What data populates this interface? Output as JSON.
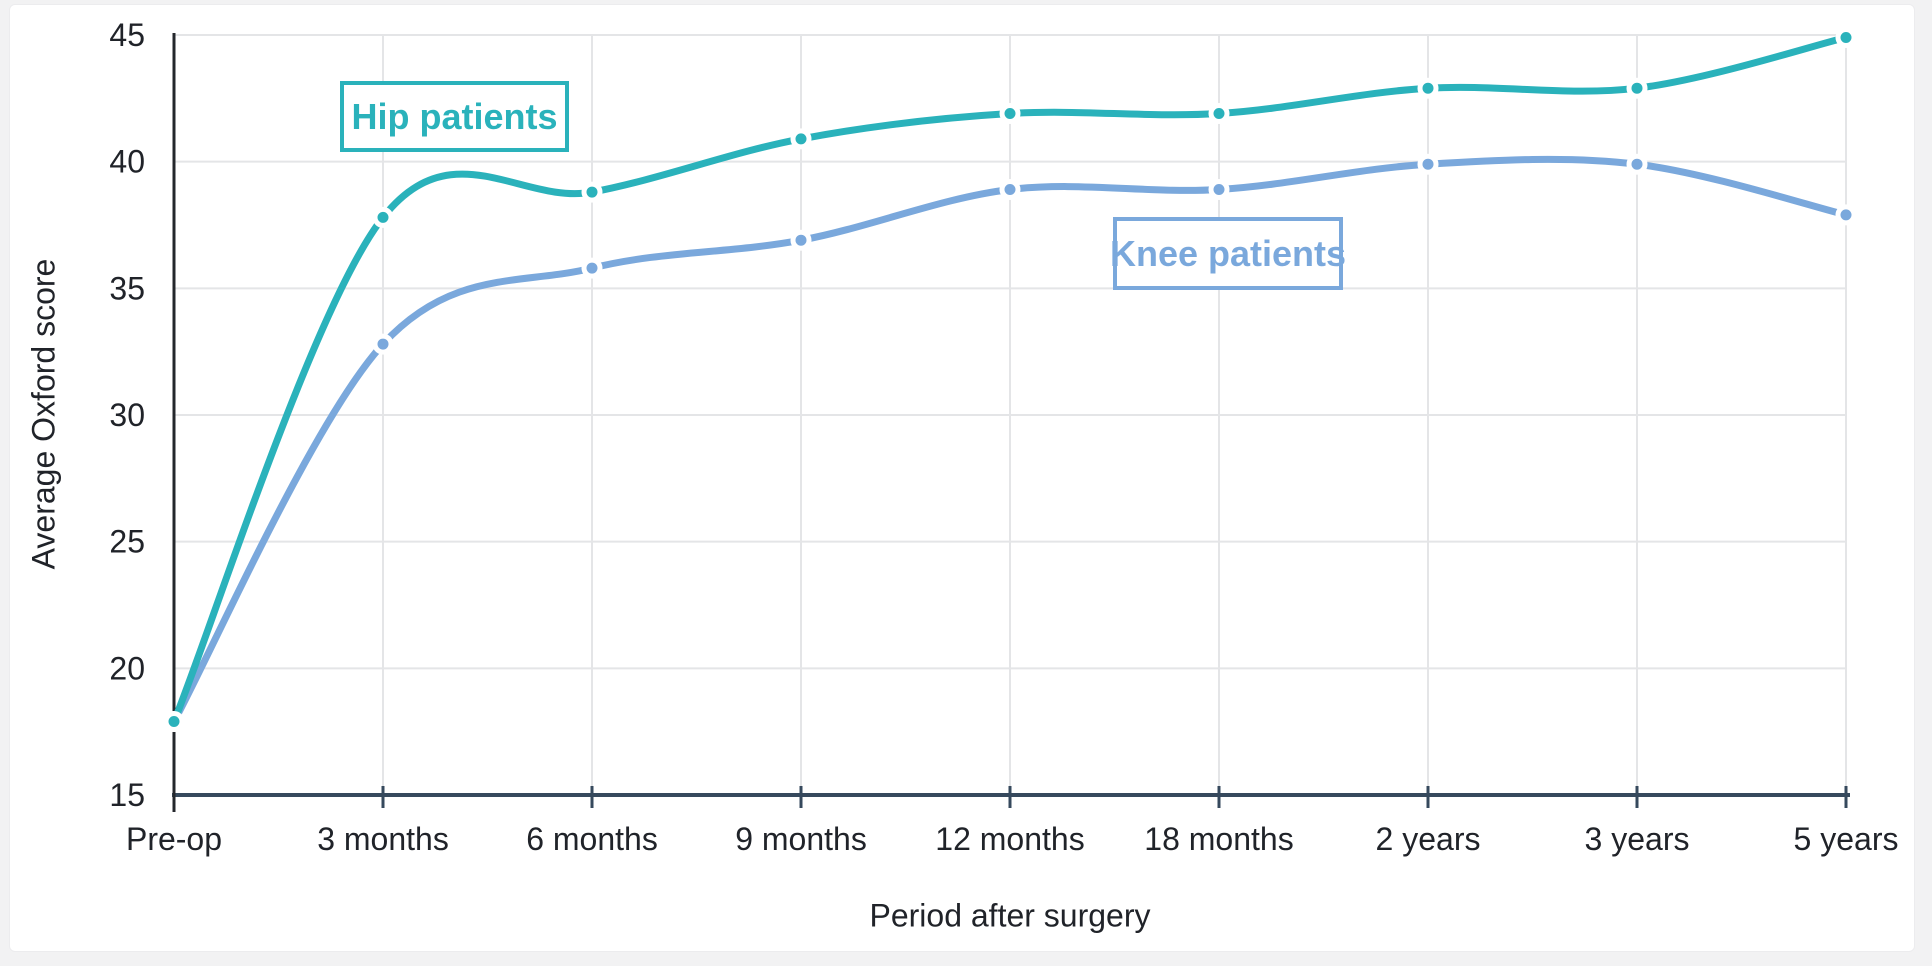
{
  "page": {
    "background_color": "#f2f2f3",
    "panel_color": "#ffffff"
  },
  "chart_data": {
    "type": "line",
    "title": "",
    "xlabel": "Period after surgery",
    "ylabel": "Average Oxford score",
    "categories": [
      "Pre-op",
      "3 months",
      "6 months",
      "9 months",
      "12 months",
      "18 months",
      "2 years",
      "3 years",
      "5 years"
    ],
    "series": [
      {
        "name": "Hip patients",
        "color": "#2ab2bb",
        "values": [
          17.9,
          37.8,
          38.8,
          40.9,
          41.9,
          41.9,
          42.9,
          42.9,
          44.9
        ]
      },
      {
        "name": "Knee patients",
        "color": "#7aa8dc",
        "values": [
          17.9,
          32.8,
          35.8,
          36.9,
          38.9,
          38.9,
          39.9,
          39.9,
          37.9
        ]
      }
    ],
    "ylim": [
      15,
      45
    ],
    "y_ticks": [
      15,
      20,
      25,
      30,
      35,
      40,
      45
    ],
    "grid": true,
    "line_style": "smooth",
    "legend_position": "inline-boxed-labels",
    "marker": "circle-with-white-ring",
    "colors": {
      "x_axis": "#36495d",
      "y_axis": "#24272c",
      "tick_text": "#202329",
      "gridline": "#e4e5e7"
    }
  }
}
